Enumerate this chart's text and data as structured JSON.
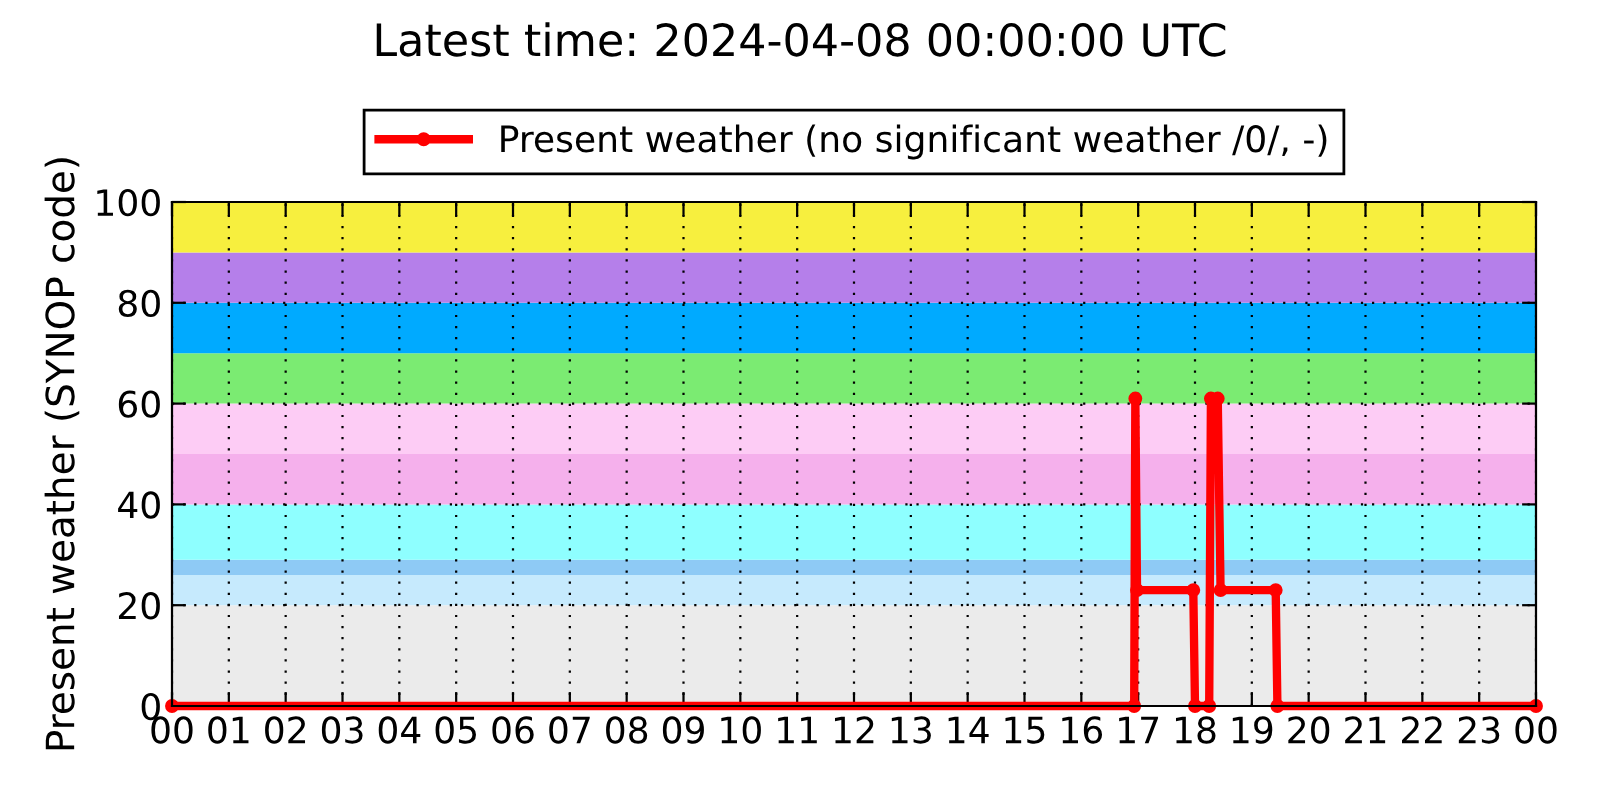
{
  "chart_data": {
    "type": "line",
    "title": "Latest time: 2024-04-08 00:00:00 UTC",
    "ylabel": "Present weather (SYNOP code)",
    "x": [
      0,
      16.93,
      16.95,
      16.98,
      17.97,
      18.0,
      18.25,
      18.28,
      18.4,
      18.45,
      19.42,
      19.45,
      24
    ],
    "series": [
      {
        "name": "Present weather (no significant weather /0/, -)",
        "color": "#ff0000",
        "values": [
          0,
          0,
          61,
          23,
          23,
          0,
          0,
          61,
          61,
          23,
          23,
          0,
          0
        ]
      }
    ],
    "xlim": [
      0,
      24
    ],
    "xticks": [
      {
        "value": 0,
        "label": "00"
      },
      {
        "value": 1,
        "label": "01"
      },
      {
        "value": 2,
        "label": "02"
      },
      {
        "value": 3,
        "label": "03"
      },
      {
        "value": 4,
        "label": "04"
      },
      {
        "value": 5,
        "label": "05"
      },
      {
        "value": 6,
        "label": "06"
      },
      {
        "value": 7,
        "label": "07"
      },
      {
        "value": 8,
        "label": "08"
      },
      {
        "value": 9,
        "label": "09"
      },
      {
        "value": 10,
        "label": "10"
      },
      {
        "value": 11,
        "label": "11"
      },
      {
        "value": 12,
        "label": "12"
      },
      {
        "value": 13,
        "label": "13"
      },
      {
        "value": 14,
        "label": "14"
      },
      {
        "value": 15,
        "label": "15"
      },
      {
        "value": 16,
        "label": "16"
      },
      {
        "value": 17,
        "label": "17"
      },
      {
        "value": 18,
        "label": "18"
      },
      {
        "value": 19,
        "label": "19"
      },
      {
        "value": 20,
        "label": "20"
      },
      {
        "value": 21,
        "label": "21"
      },
      {
        "value": 22,
        "label": "22"
      },
      {
        "value": 23,
        "label": "23"
      },
      {
        "value": 24,
        "label": "00"
      }
    ],
    "ylim": [
      0,
      100
    ],
    "yticks": [
      0,
      20,
      40,
      60,
      80,
      100
    ],
    "bands": [
      {
        "axis": "y",
        "from": 0,
        "to": 20,
        "color": "#ebebeb"
      },
      {
        "axis": "y",
        "from": 20,
        "to": 26,
        "color": "#c6eafd"
      },
      {
        "axis": "y",
        "from": 26,
        "to": 29,
        "color": "#8ecaf5"
      },
      {
        "axis": "y",
        "from": 29,
        "to": 40,
        "color": "#8effff"
      },
      {
        "axis": "y",
        "from": 40,
        "to": 50,
        "color": "#f5b0ec"
      },
      {
        "axis": "y",
        "from": 50,
        "to": 60,
        "color": "#fdccf5"
      },
      {
        "axis": "y",
        "from": 60,
        "to": 70,
        "color": "#7beb72"
      },
      {
        "axis": "y",
        "from": 70,
        "to": 80,
        "color": "#00aaff"
      },
      {
        "axis": "y",
        "from": 80,
        "to": 90,
        "color": "#b57fea"
      },
      {
        "axis": "y",
        "from": 90,
        "to": 100,
        "color": "#f7ef3e"
      }
    ],
    "grid": true,
    "legend": "top",
    "marker": "circle",
    "line_style": "solid"
  }
}
